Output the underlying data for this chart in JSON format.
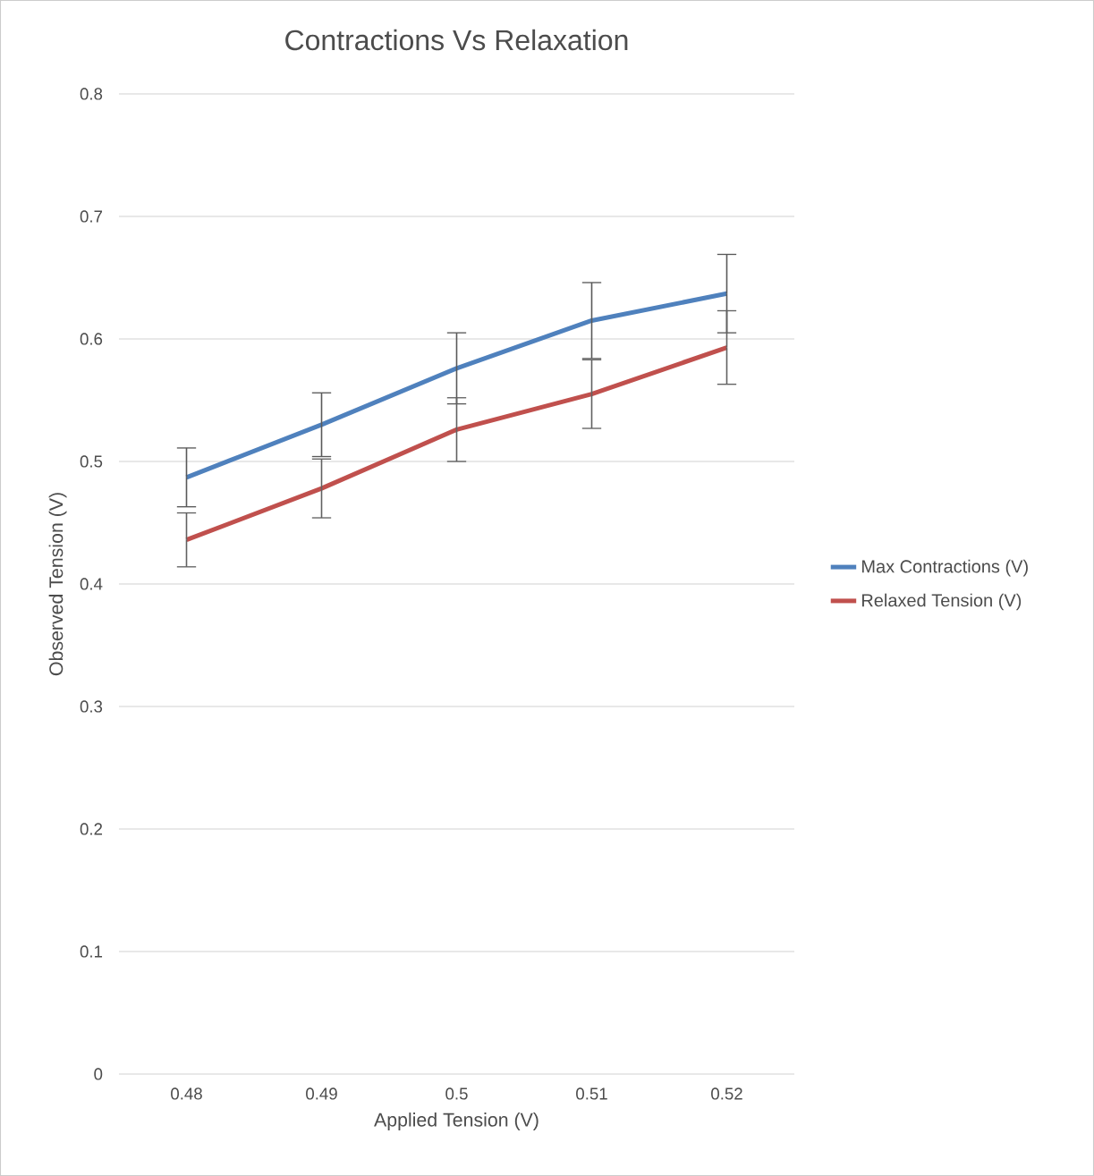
{
  "chart_data": {
    "type": "line",
    "title": "Contractions Vs Relaxation",
    "xlabel": "Applied Tension (V)",
    "ylabel": "Observed Tension (V)",
    "categories": [
      "0.48",
      "0.49",
      "0.5",
      "0.51",
      "0.52"
    ],
    "series": [
      {
        "name": "Max Contractions (V)",
        "color": "#4f81bd",
        "values": [
          0.487,
          0.53,
          0.576,
          0.615,
          0.637
        ],
        "errors": [
          0.024,
          0.026,
          0.029,
          0.031,
          0.032
        ]
      },
      {
        "name": "Relaxed Tension (V)",
        "color": "#c0504d",
        "values": [
          0.436,
          0.478,
          0.526,
          0.555,
          0.593
        ],
        "errors": [
          0.022,
          0.024,
          0.026,
          0.028,
          0.03
        ]
      }
    ],
    "ylim": [
      0,
      0.8
    ],
    "yticks": [
      0,
      0.1,
      0.2,
      0.3,
      0.4,
      0.5,
      0.6,
      0.7,
      0.8
    ],
    "grid": "y",
    "legend": "right",
    "marker": "none"
  }
}
